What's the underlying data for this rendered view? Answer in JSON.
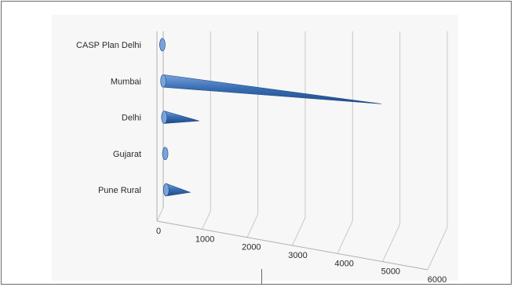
{
  "chart_data": {
    "type": "bar",
    "orientation": "horizontal",
    "style": "3d-cone",
    "categories": [
      "CASP Plan Delhi",
      "Mumbai",
      "Delhi",
      "Gujarat",
      "Pune Rural"
    ],
    "values": [
      60,
      5000,
      800,
      50,
      550
    ],
    "title": "",
    "xlabel": "",
    "ylabel": "",
    "xlim": [
      0,
      6000
    ],
    "xticks": [
      0,
      1000,
      2000,
      3000,
      4000,
      5000,
      6000
    ],
    "xtick_labels": [
      "0",
      "1000",
      "2000",
      "3000",
      "4000",
      "5000",
      "6000"
    ],
    "grid": true,
    "legend": "none",
    "colors": {
      "series": "#3a6fb5",
      "series_light": "#7aa3d9",
      "series_dark": "#1f4a87",
      "grid": "#c8c8c8",
      "axis": "#b0b0b0",
      "text": "#2a2a2a"
    }
  }
}
